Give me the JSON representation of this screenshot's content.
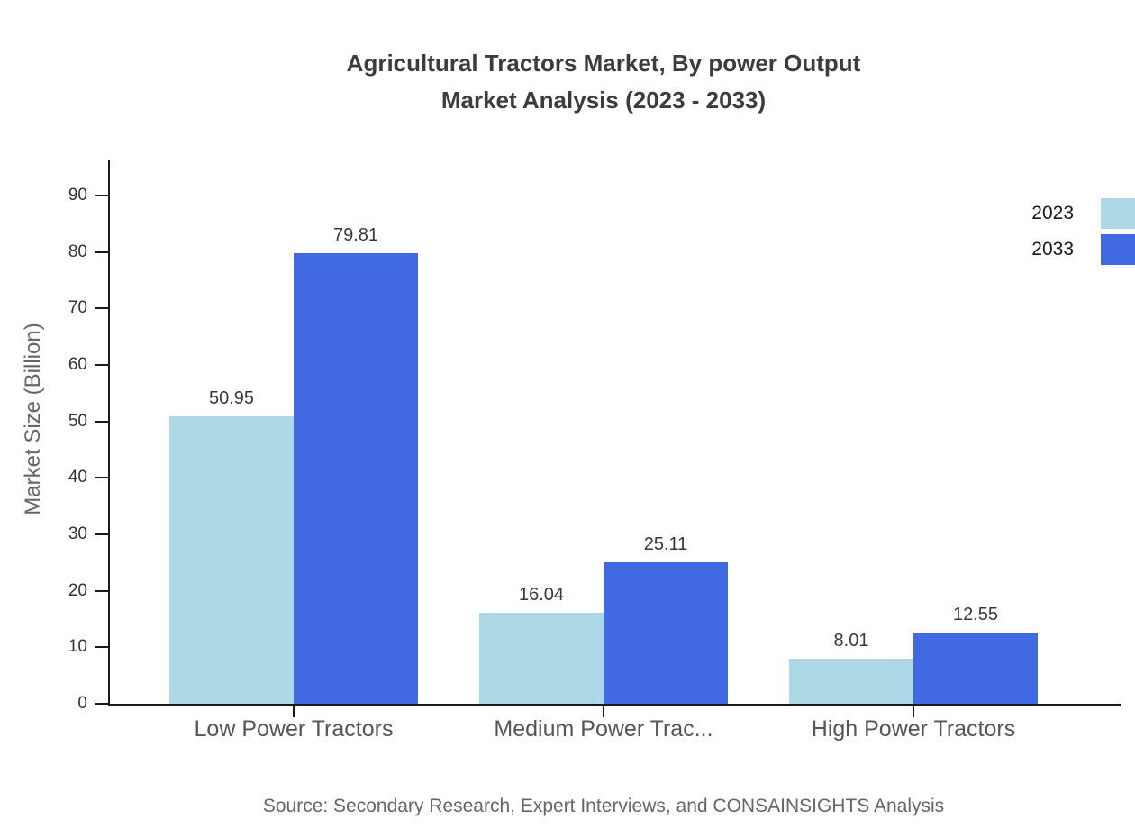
{
  "page": {
    "background": "#ffffff"
  },
  "chart_data": {
    "type": "bar",
    "title_line1": "Agricultural Tractors Market, By power Output",
    "title_line2": "Market Analysis (2023 - 2033)",
    "xlabel": "",
    "ylabel": "Market Size (Billion)",
    "categories": [
      "Low Power Tractors",
      "Medium Power Trac...",
      "High Power Tractors"
    ],
    "series": [
      {
        "name": "2023",
        "color": "#ADD8E6",
        "values": [
          50.95,
          16.04,
          8.01
        ]
      },
      {
        "name": "2033",
        "color": "#4169E1",
        "values": [
          79.81,
          25.11,
          12.55
        ]
      }
    ],
    "yticks": [
      0,
      10,
      20,
      30,
      40,
      50,
      60,
      70,
      80,
      90
    ],
    "ylim": [
      0,
      96.5
    ],
    "grid": false,
    "legend_position": "top-right",
    "axis_color": "#1a1a1a"
  },
  "source": {
    "text": "Source: Secondary Research, Expert Interviews, and CONSAINSIGHTS Analysis"
  }
}
